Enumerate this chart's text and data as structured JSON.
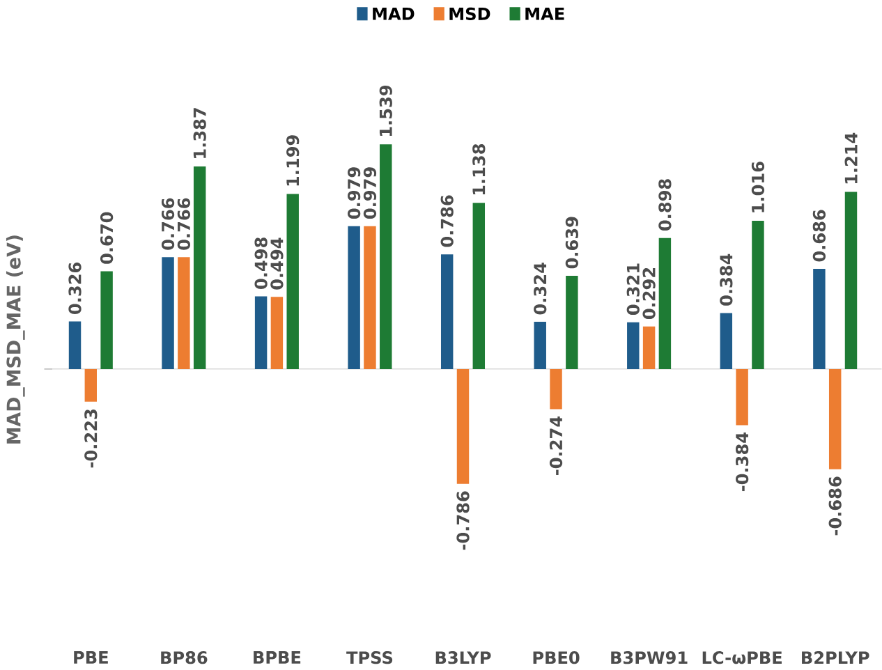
{
  "chart_data": {
    "type": "bar",
    "ylabel": "MAD_MSD_MAE (eV)",
    "categories": [
      "PBE",
      "BP86",
      "BPBE",
      "TPSS",
      "B3LYP",
      "PBE0",
      "B3PW91",
      "LC-ωPBE",
      "B2PLYP"
    ],
    "series": [
      {
        "name": "MAD",
        "color": "#1f5c8b",
        "values": [
          0.326,
          0.766,
          0.498,
          0.979,
          0.786,
          0.324,
          0.321,
          0.384,
          0.686
        ],
        "value_labels": [
          "0.326",
          "0.766",
          "0.498",
          "0.979",
          "0.786",
          "0.324",
          "0.321",
          "0.384",
          "0.686"
        ]
      },
      {
        "name": "MSD",
        "color": "#ed7d31",
        "values": [
          -0.223,
          0.766,
          0.494,
          0.979,
          -0.786,
          -0.274,
          0.292,
          -0.384,
          -0.686
        ],
        "value_labels": [
          "-0.223",
          "0.766",
          "0.494",
          "0.979",
          "-0.786",
          "-0.274",
          "0.292",
          "-0.384",
          "-0.686"
        ]
      },
      {
        "name": "MAE",
        "color": "#1e7b34",
        "values": [
          0.67,
          1.387,
          1.199,
          1.539,
          1.138,
          0.639,
          0.898,
          1.016,
          1.214
        ],
        "value_labels": [
          "0.670",
          "1.387",
          "1.199",
          "1.539",
          "1.138",
          "0.639",
          "0.898",
          "1.016",
          "1.214"
        ]
      }
    ],
    "legend": "top",
    "tick_labels": "x"
  }
}
